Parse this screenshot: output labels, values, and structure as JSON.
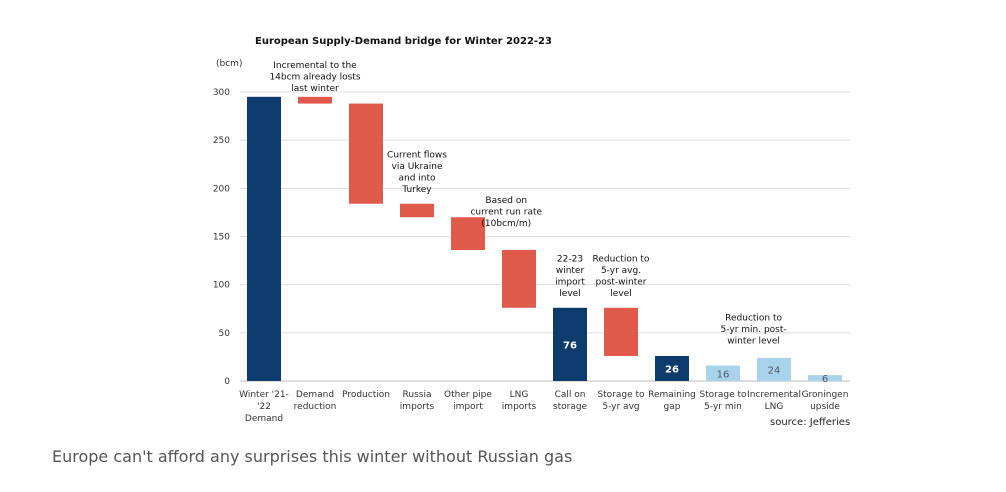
{
  "chart_data": {
    "type": "bar",
    "subtype": "waterfall",
    "title": "European Supply-Demand bridge for Winter 2022-23",
    "ylabel": "(bcm)",
    "ylim": [
      0,
      300
    ],
    "yticks": [
      0,
      50,
      100,
      150,
      200,
      250,
      300
    ],
    "grid": true,
    "colors": {
      "total": "#0d3b6b",
      "decrease": "#e05a4b",
      "light": "#a9d3ea"
    },
    "bars": [
      {
        "label": [
          "Winter '21-",
          "'22",
          "Demand"
        ],
        "base": 0,
        "top": 295,
        "kind": "total",
        "value_label": ""
      },
      {
        "label": [
          "Demand",
          "reduction"
        ],
        "base": 288,
        "top": 295,
        "kind": "decrease",
        "value_label": ""
      },
      {
        "label": [
          "Production"
        ],
        "base": 184,
        "top": 288,
        "kind": "decrease",
        "value_label": ""
      },
      {
        "label": [
          "Russia",
          "imports"
        ],
        "base": 170,
        "top": 184,
        "kind": "decrease",
        "value_label": ""
      },
      {
        "label": [
          "Other pipe",
          "import"
        ],
        "base": 136,
        "top": 170,
        "kind": "decrease",
        "value_label": ""
      },
      {
        "label": [
          "LNG",
          "imports"
        ],
        "base": 76,
        "top": 136,
        "kind": "decrease",
        "value_label": ""
      },
      {
        "label": [
          "Call on",
          "storage"
        ],
        "base": 0,
        "top": 76,
        "kind": "total",
        "value_label": "76"
      },
      {
        "label": [
          "Storage to",
          "5-yr avg"
        ],
        "base": 26,
        "top": 76,
        "kind": "decrease",
        "value_label": ""
      },
      {
        "label": [
          "Remaining",
          "gap"
        ],
        "base": 0,
        "top": 26,
        "kind": "total",
        "value_label": "26"
      },
      {
        "label": [
          "Storage to",
          "5-yr min"
        ],
        "base": 0,
        "top": 16,
        "kind": "light",
        "value_label": "16"
      },
      {
        "label": [
          "Incremental",
          "LNG"
        ],
        "base": 0,
        "top": 24,
        "kind": "light",
        "value_label": "24"
      },
      {
        "label": [
          "Groningen",
          "upside"
        ],
        "base": 0,
        "top": 6,
        "kind": "light",
        "value_label": "6"
      }
    ],
    "annotations": [
      {
        "bar": 1,
        "y": 325,
        "lines": [
          "Incremental to the",
          "14bcm already losts",
          "last winter"
        ]
      },
      {
        "bar": 3,
        "y": 232,
        "lines": [
          "Current flows",
          "via Ukraine",
          "and into",
          "Turkey"
        ]
      },
      {
        "bar": 4.75,
        "y": 185,
        "lines": [
          "Based on",
          "current run rate",
          "(10bcm/m)"
        ]
      },
      {
        "bar": 6,
        "y": 124,
        "lines": [
          "22-23",
          "winter",
          "import",
          "level"
        ]
      },
      {
        "bar": 7,
        "y": 124,
        "lines": [
          "Reduction to",
          "5-yr avg.",
          "post-winter",
          "level"
        ]
      },
      {
        "bar": 9.6,
        "y": 63,
        "lines": [
          "Reduction to",
          "5-yr min. post-",
          "winter level"
        ]
      }
    ],
    "source": "source: Jefferies"
  },
  "caption": "Europe can't afford any surprises this winter without Russian gas"
}
